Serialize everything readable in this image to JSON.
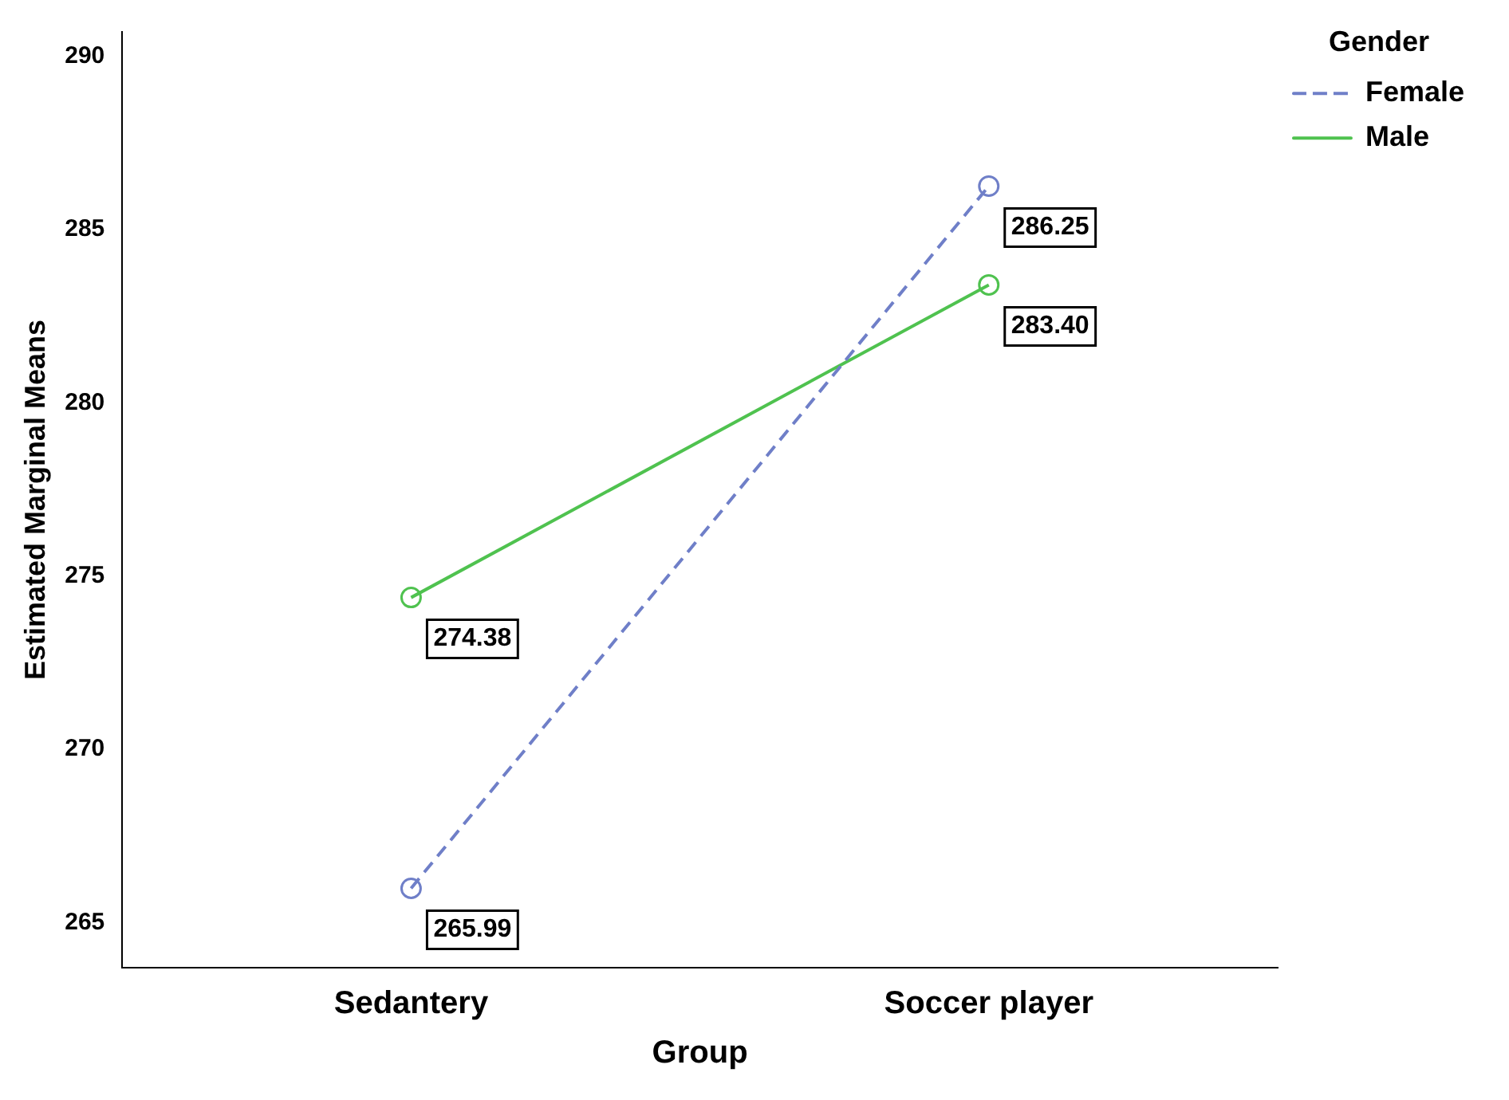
{
  "chart_data": {
    "type": "line",
    "xlabel": "Group",
    "ylabel": "Estimated Marginal Means",
    "legend_title": "Gender",
    "categories": [
      "Sedantery",
      "Soccer player"
    ],
    "series": [
      {
        "name": "Female",
        "color": "#6f7fc8",
        "values": [
          265.99,
          286.25
        ],
        "value_labels": [
          "265.99",
          "286.25"
        ],
        "line_style": "dashed"
      },
      {
        "name": "Male",
        "color": "#4fc24f",
        "values": [
          274.38,
          283.4
        ],
        "value_labels": [
          "274.38",
          "283.40"
        ],
        "line_style": "solid"
      }
    ],
    "ylim": [
      263.7,
      290.7
    ],
    "yticks": [
      265,
      270,
      275,
      280,
      285,
      290
    ],
    "grid": false,
    "legend": "top right",
    "marker": "circle"
  }
}
